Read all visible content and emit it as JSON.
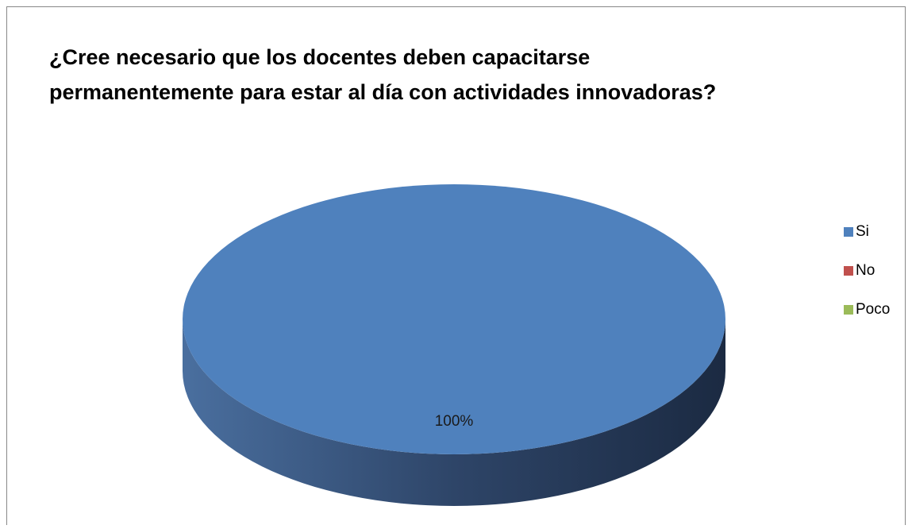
{
  "chart_data": {
    "type": "pie",
    "title": [
      "¿Cree necesario que los docentes deben capacitarse",
      "permanentemente para estar al día con actividades innovadoras?"
    ],
    "categories": [
      "Si",
      "No",
      "Poco"
    ],
    "values": [
      100,
      0,
      0
    ],
    "value_labels": [
      "100%",
      null,
      null
    ],
    "colors": [
      "#4f81bd",
      "#c0504d",
      "#9bbb59"
    ],
    "legend": "right"
  }
}
